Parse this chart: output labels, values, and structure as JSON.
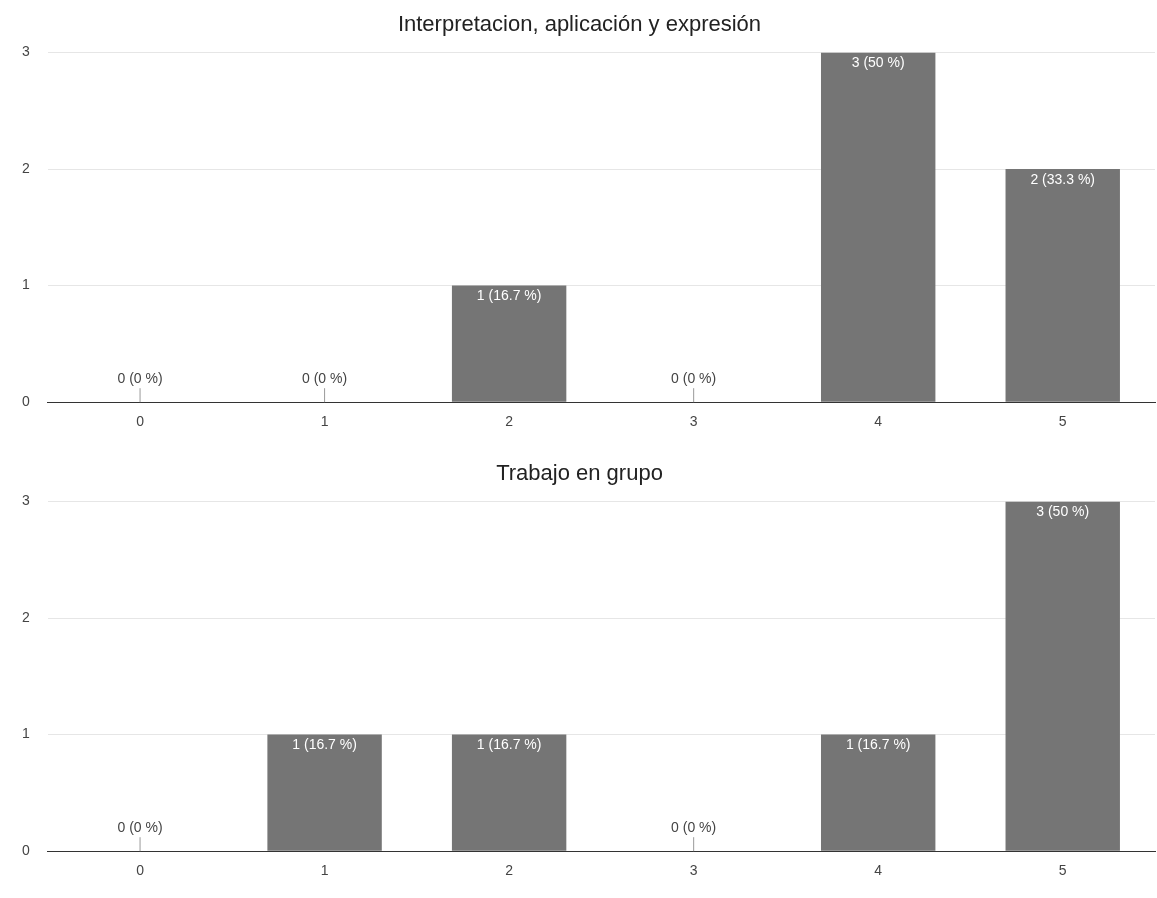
{
  "chart_data": [
    {
      "type": "bar",
      "title": "Interpretacion, aplicación y expresión",
      "categories": [
        "0",
        "1",
        "2",
        "3",
        "4",
        "5"
      ],
      "values": [
        0,
        0,
        1,
        0,
        3,
        2
      ],
      "color": "#757575",
      "value_labels": [
        "0 (0 %)",
        "0 (0 %)",
        "1 (16.7 %)",
        "0 (0 %)",
        "3 (50 %)",
        "2 (33.3 %)"
      ],
      "ylim": [
        0,
        3
      ],
      "yticks": [
        0,
        1,
        2,
        3
      ],
      "grid": "y",
      "legend": false
    },
    {
      "type": "bar",
      "title": "Trabajo en grupo",
      "categories": [
        "0",
        "1",
        "2",
        "3",
        "4",
        "5"
      ],
      "values": [
        0,
        1,
        1,
        0,
        1,
        3
      ],
      "color": "#757575",
      "value_labels": [
        "0 (0 %)",
        "1 (16.7 %)",
        "1 (16.7 %)",
        "0 (0 %)",
        "1 (16.7 %)",
        "3 (50 %)"
      ],
      "ylim": [
        0,
        3
      ],
      "yticks": [
        0,
        1,
        2,
        3
      ],
      "grid": "y",
      "legend": false
    }
  ]
}
